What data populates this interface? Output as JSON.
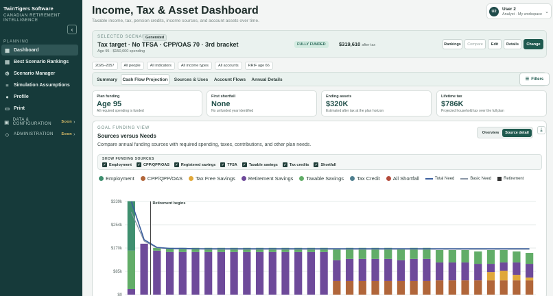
{
  "sidebar": {
    "brand": "TwinTigers Software",
    "brand_sub": "Canadian Retirement Intelligence",
    "section": "PLANNING",
    "items": [
      {
        "label": "Dashboard",
        "icon": "grid-icon"
      },
      {
        "label": "Best Scenario Rankings",
        "icon": "chart-icon"
      },
      {
        "label": "Scenario Manager",
        "icon": "gear-icon"
      },
      {
        "label": "Simulation Assumptions",
        "icon": "sliders-icon"
      },
      {
        "label": "Profile",
        "icon": "user-icon"
      },
      {
        "label": "Print",
        "icon": "print-icon"
      }
    ],
    "groups": [
      {
        "label": "DATA & CONFIGURATION",
        "badge": "Soon"
      },
      {
        "label": "ADMINISTRATION",
        "badge": "Soon"
      }
    ]
  },
  "header": {
    "title": "Income, Tax & Asset Dashboard",
    "subtitle": "Taxable income, tax, pension credits, income sources, and account assets over time."
  },
  "user": {
    "initials": "U2",
    "name": "User 2",
    "role": "Analyst · My workspace"
  },
  "scenario": {
    "label": "SELECTED SCENARIO",
    "badge": "Generated",
    "title": "Tax target · No TFSA · CPP/OAS 70 · 3rd bracket",
    "meta": "Age 95 · $150,000 spending",
    "status": "FULLY FUNDED",
    "amount": "$319,610",
    "amount_suffix": "after tax",
    "buttons": [
      "Rankings",
      "Compare",
      "Edit",
      "Details",
      "Change"
    ]
  },
  "filters": [
    "2026–2057",
    "All people",
    "All indicators",
    "All income types",
    "All accounts",
    "RRIF age 66"
  ],
  "tabs": [
    "Summary",
    "Cash Flow Projection",
    "Sources & Uses",
    "Account Flows",
    "Annual Details"
  ],
  "active_tab": "Cash Flow Projection",
  "filters_button": "Filters",
  "stats": [
    {
      "label": "Plan funding",
      "value": "Age 95",
      "note": "All required spending is funded"
    },
    {
      "label": "First shortfall",
      "value": "None",
      "note": "No unfunded year identified"
    },
    {
      "label": "Ending assets",
      "value": "$320K",
      "note": "Estimated after tax at the plan horizon"
    },
    {
      "label": "Lifetime tax",
      "value": "$786K",
      "note": "Projected household tax over the full plan"
    }
  ],
  "goal": {
    "eyebrow": "GOAL FUNDING VIEW",
    "title": "Sources versus Needs",
    "description": "Compare annual funding sources with required spending, taxes, contributions, and other plan needs.",
    "toggle": [
      "Overview",
      "Source detail"
    ],
    "show_label": "SHOW FUNDING SOURCES",
    "checkboxes": [
      "Employment",
      "CPP/QPP/OAS",
      "Registered savings",
      "TFSA",
      "Taxable savings",
      "Tax credits",
      "Shortfall"
    ]
  },
  "chart_data": {
    "type": "bar",
    "stacked": true,
    "ylim": [
      0,
      339000
    ],
    "ytick_labels": [
      "$339k",
      "$254k",
      "$170k",
      "$85k",
      "$0"
    ],
    "annotation": "Retirement begins",
    "legend": [
      {
        "name": "Employment",
        "color": "#3f8f6f",
        "marker": "dot"
      },
      {
        "name": "CPP/QPP/OAS",
        "color": "#b1663a",
        "marker": "dot"
      },
      {
        "name": "Tax Free Savings",
        "color": "#e0a83a",
        "marker": "dot"
      },
      {
        "name": "Retirement Savings",
        "color": "#6e4a9a",
        "marker": "dot"
      },
      {
        "name": "Taxable Savings",
        "color": "#62ad68",
        "marker": "dot"
      },
      {
        "name": "Tax Credit",
        "color": "#4f7f8f",
        "marker": "dot"
      },
      {
        "name": "All Shortfall",
        "color": "#b44b3c",
        "marker": "dot"
      },
      {
        "name": "Total Need",
        "color": "#3b5f9e",
        "marker": "line"
      },
      {
        "name": "Basic Need",
        "color": "#8a96a6",
        "marker": "line"
      },
      {
        "name": "Retirement",
        "color": "#333333",
        "marker": "square"
      }
    ],
    "series": [
      {
        "name": "Employment",
        "color": "#3f8f6f",
        "values": [
          180000,
          0,
          0,
          0,
          0,
          0,
          0,
          0,
          0,
          0,
          0,
          0,
          0,
          0,
          0,
          0,
          0,
          0,
          0,
          0,
          0,
          0,
          0,
          0,
          0,
          0,
          0,
          0,
          0,
          0,
          0,
          0
        ]
      },
      {
        "name": "CPP/QPP/OAS",
        "color": "#b1663a",
        "values": [
          0,
          0,
          0,
          0,
          0,
          0,
          0,
          0,
          0,
          0,
          0,
          0,
          0,
          0,
          0,
          0,
          50000,
          50000,
          50000,
          50000,
          50000,
          50000,
          50000,
          50000,
          52000,
          52000,
          52000,
          52000,
          52000,
          52000,
          52000,
          52000
        ]
      },
      {
        "name": "Tax Free Savings",
        "color": "#e0a83a",
        "values": [
          0,
          0,
          0,
          0,
          0,
          0,
          0,
          0,
          0,
          0,
          0,
          0,
          0,
          0,
          0,
          0,
          0,
          0,
          0,
          0,
          0,
          0,
          0,
          0,
          0,
          0,
          0,
          0,
          30000,
          35000,
          20000,
          10000
        ]
      },
      {
        "name": "Retirement Savings",
        "color": "#6e4a9a",
        "values": [
          20000,
          185000,
          160000,
          155000,
          155000,
          155000,
          155000,
          155000,
          155000,
          155000,
          155000,
          155000,
          155000,
          155000,
          155000,
          155000,
          75000,
          80000,
          80000,
          80000,
          80000,
          75000,
          80000,
          80000,
          65000,
          65000,
          65000,
          60000,
          30000,
          30000,
          45000,
          50000
        ]
      },
      {
        "name": "Taxable Savings",
        "color": "#62ad68",
        "values": [
          140000,
          0,
          10000,
          15000,
          15000,
          15000,
          15000,
          15000,
          15000,
          15000,
          15000,
          15000,
          15000,
          15000,
          15000,
          15000,
          40000,
          40000,
          40000,
          40000,
          40000,
          40000,
          40000,
          40000,
          45000,
          45000,
          45000,
          45000,
          50000,
          45000,
          40000,
          40000
        ]
      }
    ],
    "total_need": [
      339000,
      200000,
      172000,
      168000,
      168000,
      167000,
      167000,
      167000,
      167000,
      167000,
      167000,
      167000,
      167000,
      167000,
      167000,
      167000,
      167000,
      167000,
      167000,
      167000,
      167000,
      167000,
      167000,
      167000,
      167000,
      167000,
      167000,
      167000,
      167000,
      167000,
      167000,
      167000
    ],
    "basic_need": [
      300000,
      195000,
      170000,
      167000,
      166000,
      166000,
      165000,
      165000,
      165000,
      165000,
      165000,
      165000,
      165000,
      165000,
      165000,
      165000,
      165000,
      165000,
      165000,
      165000,
      165000,
      165000,
      165000,
      165000,
      165000,
      165000,
      165000,
      165000,
      165000,
      165000,
      165000,
      165000
    ],
    "retirement_index": 2
  }
}
